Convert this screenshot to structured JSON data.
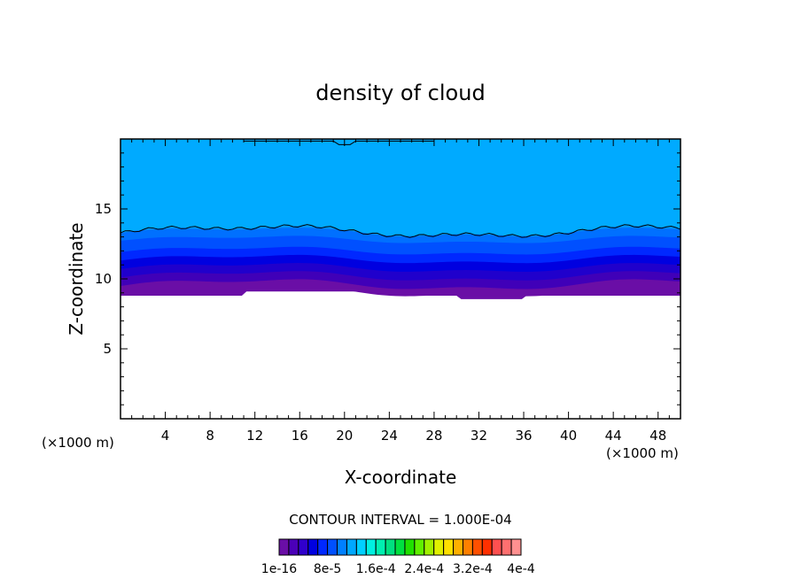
{
  "chart_data": {
    "type": "contour",
    "title": "density of cloud",
    "xlabel": "X-coordinate",
    "ylabel": "Z-coordinate",
    "x_unit": "(×1000 m)",
    "z_unit": "(×1000 m)",
    "xlim": [
      0,
      50
    ],
    "ylim": [
      0,
      20
    ],
    "x_ticks": [
      4,
      8,
      12,
      16,
      20,
      24,
      28,
      32,
      36,
      40,
      44,
      48
    ],
    "y_ticks": [
      5,
      10,
      15
    ],
    "contour_interval_text": "CONTOUR INTERVAL = 1.000E-04",
    "colorbar": {
      "colors": [
        "#6a0ea6",
        "#4b00b8",
        "#3000cc",
        "#0000e0",
        "#0028ff",
        "#0050ff",
        "#0080ff",
        "#00a8ff",
        "#00d0ff",
        "#00f0e0",
        "#00f0b0",
        "#00e080",
        "#00e040",
        "#20e000",
        "#60f000",
        "#a0f000",
        "#e0f000",
        "#ffe000",
        "#ffb000",
        "#ff8000",
        "#ff5000",
        "#ff3000",
        "#ff5050",
        "#ff7070",
        "#ff9090"
      ],
      "labels": [
        "1e-16",
        "8e-5",
        "1.6e-4",
        "2.4e-4",
        "3.2e-4",
        "4e-4"
      ]
    },
    "bands": [
      {
        "level": "top",
        "z_top": 20,
        "color": "#00aaff"
      },
      {
        "z_base_mean": 13.4,
        "color": "#0090ff"
      },
      {
        "z_base_mean": 12.8,
        "color": "#0070ff"
      },
      {
        "z_base_mean": 12.0,
        "color": "#0050ff"
      },
      {
        "z_base_mean": 11.4,
        "color": "#0028ff"
      },
      {
        "z_base_mean": 10.8,
        "color": "#0000e0"
      },
      {
        "z_base_mean": 10.2,
        "color": "#2000cc"
      },
      {
        "z_base_mean": 9.6,
        "color": "#4000b8"
      },
      {
        "z_base_mean": 9.1,
        "color": "#6a0ea6"
      }
    ],
    "cloud_base_z": 8.8
  }
}
